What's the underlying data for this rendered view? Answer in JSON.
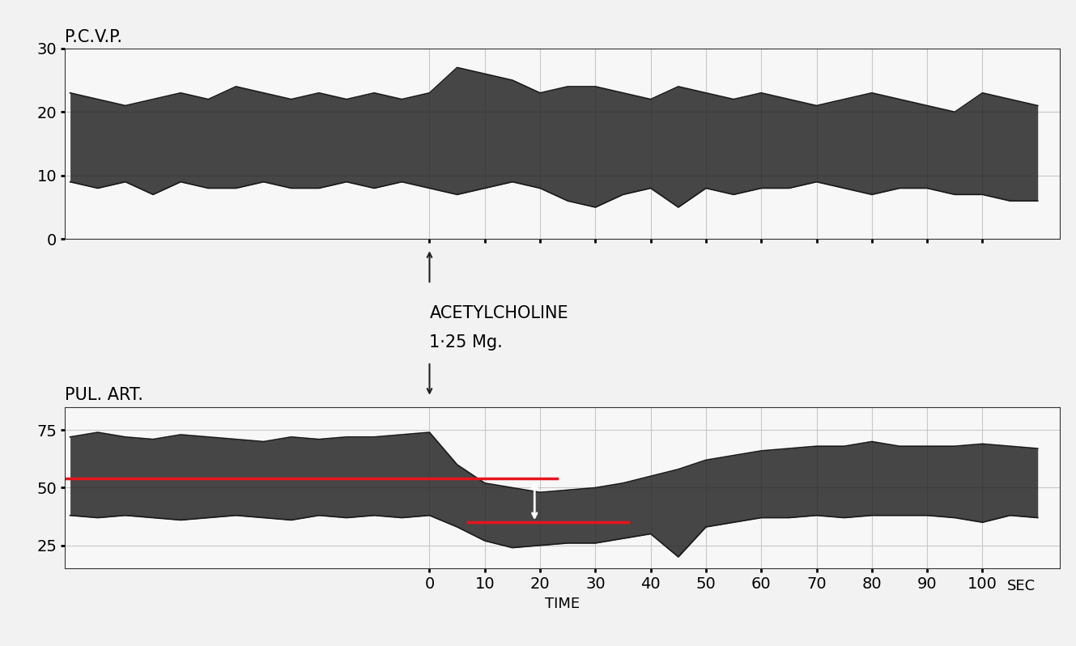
{
  "chart_data": [
    {
      "type": "range_area",
      "title": "P.C.V.P.",
      "x": [
        -65,
        -60,
        -55,
        -50,
        -45,
        -40,
        -35,
        -30,
        -25,
        -20,
        -15,
        -10,
        -5,
        0,
        5,
        10,
        15,
        20,
        25,
        30,
        35,
        40,
        45,
        50,
        55,
        60,
        65,
        70,
        75,
        80,
        85,
        90,
        95,
        100,
        105,
        110
      ],
      "series": [
        {
          "color": "#1a1a1a",
          "values": [
            23,
            22,
            21,
            22,
            23,
            22,
            24,
            23,
            22,
            23,
            22,
            23,
            22,
            23,
            27,
            26,
            25,
            23,
            24,
            24,
            23,
            22,
            24,
            23,
            22,
            23,
            22,
            21,
            22,
            23,
            22,
            21,
            20,
            23,
            22,
            21
          ]
        },
        {
          "color": "#1a1a1a",
          "values": [
            9,
            8,
            9,
            7,
            9,
            8,
            8,
            9,
            8,
            8,
            9,
            8,
            9,
            8,
            7,
            8,
            9,
            8,
            6,
            5,
            7,
            8,
            5,
            8,
            7,
            8,
            8,
            9,
            8,
            7,
            8,
            8,
            7,
            7,
            6,
            6
          ]
        }
      ],
      "xlim": [
        -66,
        114
      ],
      "xticks": [
        0,
        10,
        20,
        30,
        40,
        50,
        60,
        70,
        80,
        90,
        100
      ],
      "ylim": [
        0,
        30
      ],
      "yticks": [
        0,
        10,
        20,
        30
      ],
      "grid": true,
      "tick_labels": "y"
    },
    {
      "type": "range_area",
      "title": "PUL. ART.",
      "x": [
        -65,
        -60,
        -55,
        -50,
        -45,
        -40,
        -35,
        -30,
        -25,
        -20,
        -15,
        -10,
        -5,
        0,
        5,
        10,
        15,
        20,
        25,
        30,
        35,
        40,
        45,
        50,
        55,
        60,
        65,
        70,
        75,
        80,
        85,
        90,
        95,
        100,
        105,
        110
      ],
      "series": [
        {
          "color": "#1a1a1a",
          "values": [
            72,
            74,
            72,
            71,
            73,
            72,
            71,
            70,
            72,
            71,
            72,
            72,
            73,
            74,
            60,
            52,
            50,
            48,
            49,
            50,
            52,
            55,
            58,
            62,
            64,
            66,
            67,
            68,
            68,
            70,
            68,
            68,
            68,
            69,
            68,
            67
          ]
        },
        {
          "color": "#1a1a1a",
          "values": [
            38,
            37,
            38,
            37,
            36,
            37,
            38,
            37,
            36,
            38,
            37,
            38,
            37,
            38,
            33,
            27,
            24,
            25,
            26,
            26,
            28,
            30,
            20,
            33,
            35,
            37,
            37,
            38,
            37,
            38,
            38,
            38,
            37,
            35,
            38,
            37
          ]
        }
      ],
      "xlim": [
        -66,
        114
      ],
      "xticks": [
        0,
        10,
        20,
        30,
        40,
        50,
        60,
        70,
        80,
        90,
        100
      ],
      "xlabel": "TIME",
      "ylim": [
        15,
        85
      ],
      "yticks": [
        25,
        50,
        75
      ],
      "grid": true,
      "annotations": [
        {
          "text": "ACETYLCHOLINE",
          "x": 0
        },
        {
          "text": "1·25 Mg.",
          "x": 0
        },
        {
          "text": "SEC",
          "x": 107
        }
      ],
      "reference_lines": [
        {
          "y": 54,
          "x": [
            -66,
            23
          ],
          "color": "#e8141c"
        },
        {
          "y": 35,
          "x": [
            7,
            36
          ],
          "color": "#e8141c"
        }
      ],
      "difference": {
        "x": 19,
        "values": [
          54,
          35
        ],
        "color": "#ffffff"
      }
    }
  ]
}
